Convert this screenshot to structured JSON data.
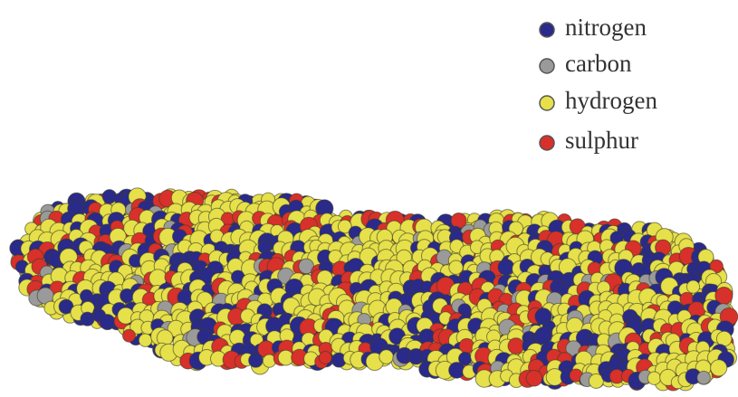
{
  "legend": {
    "items": [
      {
        "label": "nitrogen",
        "color": "#2a2a8a"
      },
      {
        "label": "carbon",
        "color": "#9a9a9a"
      },
      {
        "label": "hydrogen",
        "color": "#e6e04a"
      },
      {
        "label": "sulphur",
        "color": "#d8302a"
      }
    ]
  }
}
